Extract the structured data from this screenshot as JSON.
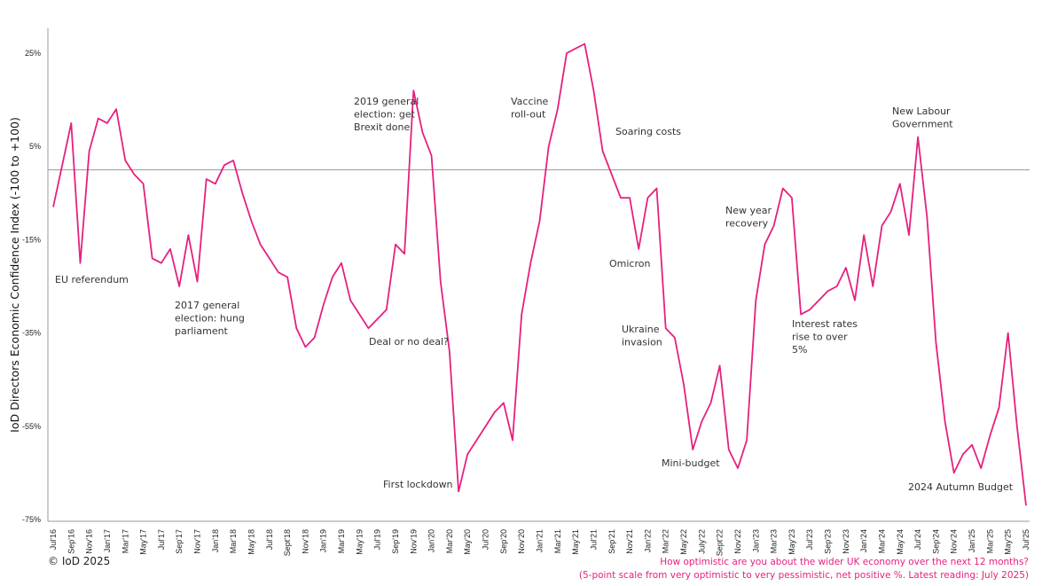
{
  "colors": {
    "series": "#e6207f",
    "axis": "#999999",
    "zero_line": "#a6a6a6",
    "text": "#333333",
    "footer": "#e6207f"
  },
  "copyright": "© IoD 2025",
  "footer": {
    "question": "How optimistic are you about the wider UK economy over the next 12 months?",
    "note": "(5-point scale from very optimistic to very pessimistic, net positive %. Latest reading: July 2025)"
  },
  "chart_data": {
    "type": "line",
    "title": "",
    "xlabel": "",
    "ylabel": "IoD Directors Economic Confidence Index (-100 to +100)",
    "ylim": [
      -75,
      30
    ],
    "y_ticks": [
      25,
      5,
      -15,
      -35,
      -55,
      -75
    ],
    "y_tick_labels": [
      "25%",
      "5%",
      "-15%",
      "-35%",
      "-55%",
      "-75%"
    ],
    "reference_line": 0,
    "grid": false,
    "legend": "none",
    "x_tick_labels": [
      "Jul'16",
      "Sep'16",
      "Nov'16",
      "Jan'17",
      "Mar'17",
      "May'17",
      "Jul'17",
      "Sep'17",
      "Nov'17",
      "Jan'18",
      "Mar'18",
      "May'18",
      "Jul'18",
      "Sept'18",
      "Nov'18",
      "Jan'19",
      "Mar'19",
      "May'19",
      "Jul'19",
      "Sep'19",
      "Nov'19",
      "Jan'20",
      "Mar'20",
      "May'20",
      "Jul'20",
      "Sep'20",
      "Nov'20",
      "Jan'21",
      "Mar'21",
      "May'21",
      "Jul'21",
      "Sep'21",
      "Nov'21",
      "Jan'22",
      "Mar'22",
      "May'22",
      "July'22",
      "Sept'22",
      "Nov'22",
      "Jan'23",
      "Mar'23",
      "May'23",
      "Jul'23",
      "Sep'23",
      "Nov'23",
      "Jan'24",
      "Mar'24",
      "May'24",
      "Jul'24",
      "Sep'24",
      "Nov'24",
      "Jan'25",
      "Mar'25",
      "May'25",
      "Jul'25"
    ],
    "series": [
      {
        "values": [
          -8,
          1,
          10,
          -20,
          4,
          11,
          10,
          13,
          2,
          -1,
          -3,
          -19,
          -20,
          -17,
          -25,
          -14,
          -24,
          -2,
          -3,
          1,
          2,
          -5,
          -11,
          -16,
          -19,
          -22,
          -23,
          -34,
          -38,
          -36,
          -29,
          -23,
          -20,
          -28,
          -31,
          -34,
          -32,
          -30,
          -16,
          -18,
          17,
          8,
          3,
          -24,
          -39,
          -69,
          -61,
          -58,
          -55,
          -52,
          -50,
          -58,
          -31,
          -20,
          -11,
          5,
          13,
          25,
          26,
          27,
          17,
          4,
          -1,
          -6,
          -6,
          -17,
          -6,
          -4,
          -34,
          -36,
          -46,
          -60,
          -54,
          -50,
          -42,
          -60,
          -64,
          -58,
          -28,
          -16,
          -12,
          -4,
          -6,
          -31,
          -30,
          -28,
          -26,
          -25,
          -21,
          -28,
          -14,
          -25,
          -12,
          -9,
          -3,
          -14,
          7,
          -10,
          -37,
          -54,
          -65,
          -61,
          -59,
          -64,
          -57,
          -51,
          -35,
          -55,
          -72
        ]
      }
    ],
    "annotations": [
      "EU referendum",
      "2017 general\nelection: hung\nparliament",
      "2019 general\nelection: get\nBrexit done",
      "Deal or no deal?",
      "First lockdown",
      "Vaccine\nroll-out",
      "Soaring costs",
      "Omicron",
      "Ukraine\ninvasion",
      "Mini-budget",
      "New year\nrecovery",
      "Interest rates\nrise to over\n5%",
      "New Labour\nGovernment",
      "2024 Autumn Budget"
    ]
  }
}
